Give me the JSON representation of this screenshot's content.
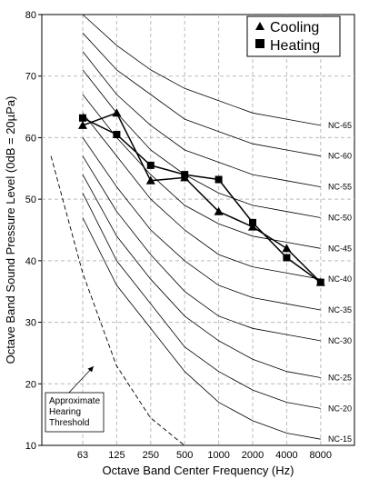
{
  "chart_data": {
    "type": "line",
    "xlabel": "Octave Band Center Frequency (Hz)",
    "ylabel": "Octave Band Sound Pressure Level (0dB = 20µPa)",
    "x_categories": [
      "63",
      "125",
      "250",
      "500",
      "1000",
      "2000",
      "4000",
      "8000"
    ],
    "ylim": [
      10,
      80
    ],
    "y_ticks": [
      10,
      20,
      30,
      40,
      50,
      60,
      70,
      80
    ],
    "grid": true,
    "legend_position": "top-right",
    "series": [
      {
        "name": "Cooling",
        "marker": "triangle",
        "values": [
          62,
          64,
          53,
          53.5,
          48,
          45.5,
          42,
          36.5
        ]
      },
      {
        "name": "Heating",
        "marker": "square",
        "values": [
          63.2,
          60.5,
          55.5,
          54,
          53.2,
          46.2,
          40.5,
          36.5
        ]
      }
    ],
    "nc_curves": [
      {
        "label": "NC-65",
        "values": [
          80,
          75,
          71,
          68,
          66,
          64,
          63,
          62
        ]
      },
      {
        "label": "NC-60",
        "values": [
          77,
          71,
          67,
          63,
          61,
          59,
          58,
          57
        ]
      },
      {
        "label": "NC-55",
        "values": [
          74,
          67,
          62,
          58,
          56,
          54,
          53,
          52
        ]
      },
      {
        "label": "NC-50",
        "values": [
          71,
          64,
          58,
          54,
          51,
          49,
          48,
          47
        ]
      },
      {
        "label": "NC-45",
        "values": [
          67,
          60,
          54,
          49,
          46,
          44,
          43,
          42
        ]
      },
      {
        "label": "NC-40",
        "values": [
          64,
          57,
          50,
          45,
          41,
          39,
          38,
          37
        ]
      },
      {
        "label": "NC-35",
        "values": [
          60,
          52,
          45,
          40,
          36,
          34,
          33,
          32
        ]
      },
      {
        "label": "NC-30",
        "values": [
          57,
          48,
          41,
          35,
          31,
          29,
          28,
          27
        ]
      },
      {
        "label": "NC-25",
        "values": [
          54,
          44,
          37,
          31,
          27,
          24,
          22,
          21
        ]
      },
      {
        "label": "NC-20",
        "values": [
          51,
          40,
          33,
          26,
          22,
          19,
          17,
          16
        ]
      },
      {
        "label": "NC-15",
        "values": [
          47,
          36,
          29,
          22,
          17,
          14,
          12,
          11
        ]
      }
    ],
    "hearing_threshold": {
      "label": "Approximate Hearing Threshold",
      "points": [
        [
          33,
          57
        ],
        [
          63,
          38
        ],
        [
          125,
          23
        ],
        [
          250,
          14.5
        ],
        [
          500,
          10
        ]
      ]
    }
  }
}
